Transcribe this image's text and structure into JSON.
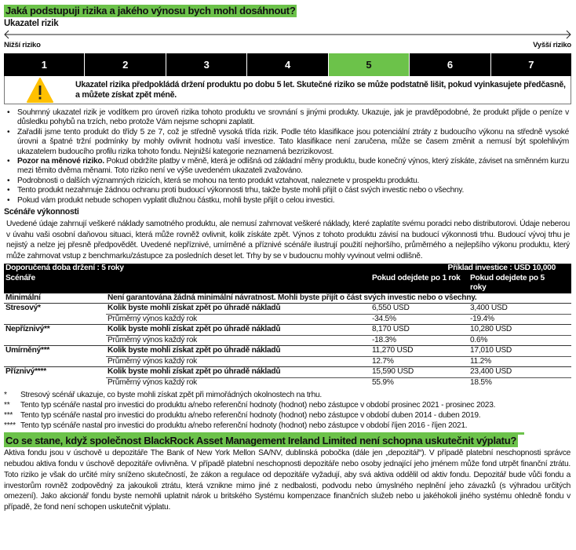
{
  "title": "Jaká podstupuji rizika a jakého výnosu bych mohl dosáhnout?",
  "risk": {
    "heading": "Ukazatel rizik",
    "low_label": "Nižší riziko",
    "high_label": "Vyšší riziko",
    "levels": [
      "1",
      "2",
      "3",
      "4",
      "5",
      "6",
      "7"
    ],
    "selected": 5,
    "accent": "#6cc24a",
    "warning_icon": "warning-triangle-icon",
    "warning": "Ukazatel rizika předpokládá držení produktu po dobu 5 let. Skutečné riziko se může podstatně lišit, pokud vyinkasujete předčasně, a můžete získat zpět méně."
  },
  "bullets": [
    {
      "bold": "",
      "text": "Souhrnný ukazatel rizik je vodítkem pro úroveň rizika tohoto produktu ve srovnání s jinými produkty. Ukazuje, jak je pravděpodobné, že produkt přijde o peníze v důsledku pohybů na trzích, nebo protože Vám nejsme schopni zaplatit."
    },
    {
      "bold": "",
      "text": "Zařadili jsme tento produkt do třídy 5 ze 7, což je středně vysoká třída rizik. Podle této klasifikace jsou potenciální ztráty z budoucího výkonu na středně vysoké úrovni a špatné tržní podmínky by mohly ovlivnit hodnotu vaší investice. Tato klasifikace není zaručena, může se časem změnit a nemusí být spolehlivým ukazatelem budoucího profilu rizika tohoto fondu. Nejnižší kategorie neznamená bezrizikovost."
    },
    {
      "bold": "Pozor na měnové riziko.",
      "text": " Pokud obdržíte platby v měně, která je odlišná od základní měny produktu, bude konečný výnos, který získáte, záviset na směnném kurzu mezi těmito dvěma měnami. Toto riziko není ve výše uvedeném ukazateli zvažováno."
    },
    {
      "bold": "",
      "text": "Podrobnosti o dalších významných rizicích, která se mohou na tento produkt vztahovat, naleznete v prospektu produktu."
    },
    {
      "bold": "",
      "text": "Tento produkt nezahrnuje žádnou ochranu proti budoucí výkonnosti trhu, takže byste mohli přijít o část svých investic nebo o všechny."
    },
    {
      "bold": "",
      "text": "Pokud vám produkt nebude schopen vyplatit dlužnou částku, mohli byste přijít o celou investici."
    }
  ],
  "scenarios": {
    "heading": "Scénáře výkonnosti",
    "intro": "Uvedené údaje zahrnují veškeré náklady samotného produktu, ale nemusí zahrnovat veškeré náklady, které zaplatíte svému poradci nebo distributorovi. Údaje neberou v úvahu vaši osobní daňovou situaci, která může rovněž ovlivnit, kolik získáte zpět. Výnos z tohoto produktu závisí na budoucí výkonnosti trhu. Budoucí vývoj trhu je nejistý a nelze jej přesně předpovědět. Uvedené nepříznivé, umírněné a příznivé scénáře ilustrují použití nejhoršího, průměrného a nejlepšího výkonu produktu, který může zahrnovat vstup z benchmarku/zástupce za posledních deset let. Trhy by se v budoucnu mohly vyvinout velmi odlišně.",
    "holding": "Doporučená doba držení : 5 roky",
    "example": "Příklad investice : USD 10,000",
    "col_scen": "Scénáře",
    "col_1": "Pokud odejdete po 1 rok",
    "col_5": "Pokud odejdete po 5 roky",
    "min_label": "Minimální",
    "min_text": "Není garantována žádná minimální návratnost. Mohli byste přijít o část svých investic nebo o všechny.",
    "rows": [
      {
        "name": "Stresový*",
        "l1": "Kolik byste mohli získat zpět po úhradě nákladů",
        "v1": "6,550 USD",
        "v5": "3,400 USD",
        "l2": "Průměrný výnos každý rok",
        "r1": "-34.5%",
        "r5": "-19.4%"
      },
      {
        "name": "Nepříznivý**",
        "l1": "Kolik byste mohli získat zpět po úhradě nákladů",
        "v1": "8,170 USD",
        "v5": "10,280 USD",
        "l2": "Průměrný výnos každý rok",
        "r1": "-18.3%",
        "r5": "0.6%"
      },
      {
        "name": "Umírněný***",
        "l1": "Kolik byste mohli získat zpět po úhradě nákladů",
        "v1": "11,270 USD",
        "v5": "17,010 USD",
        "l2": "Průměrný výnos každý rok",
        "r1": "12.7%",
        "r5": "11.2%"
      },
      {
        "name": "Příznivý****",
        "l1": "Kolik byste mohli získat zpět po úhradě nákladů",
        "v1": "15,590 USD",
        "v5": "23,400 USD",
        "l2": "Průměrný výnos každý rok",
        "r1": "55.9%",
        "r5": "18.5%"
      }
    ],
    "footnotes": [
      {
        "mark": "*",
        "text": "Stresový scénář ukazuje, co byste mohli získat zpět při mimořádných okolnostech na trhu."
      },
      {
        "mark": "**",
        "text": "Tento typ scénáře nastal pro investici do produktu a/nebo referenční hodnoty (hodnot) nebo zástupce v období prosinec 2021 - prosinec 2023."
      },
      {
        "mark": "***",
        "text": "Tento typ scénáře nastal pro investici do produktu a/nebo referenční hodnoty (hodnot) nebo zástupce v období duben 2014 - duben 2019."
      },
      {
        "mark": "****",
        "text": "Tento typ scénáře nastal pro investici do produktu a/nebo referenční hodnoty (hodnot) nebo zástupce v období říjen 2016 - říjen 2021."
      }
    ]
  },
  "default": {
    "heading": "Co se stane, když společnost BlackRock Asset Management Ireland Limited není schopna uskutečnit výplatu?",
    "text": "Aktiva fondu jsou v úschově u depozitáře The Bank of New York Mellon SA/NV, dublinská pobočka (dále jen „depozitář“). V případě platební neschopnosti správce nebudou aktiva fondu v úschově depozitáře ovlivněna. V případě platební neschopnosti depozitáře nebo osoby jednající jeho jménem může fond utrpět finanční ztrátu. Toto riziko je však do určité míry sníženo skutečností, že zákon a regulace od depozitáře vyžadují, aby svá aktiva oddělil od aktiv fondu. Depozitář bude vůči fondu a investorům rovněž zodpovědný za jakoukoli ztrátu, která vznikne mimo jiné z nedbalosti, podvodu nebo úmyslného neplnění jeho závazků (s výhradou určitých omezení). Jako akcionář fondu byste nemohli uplatnit nárok u britského Systému kompenzace finančních služeb nebo u jakéhokoli jiného systému ohledně fondu v případě, že fond není schopen uskutečnit výplatu."
  }
}
